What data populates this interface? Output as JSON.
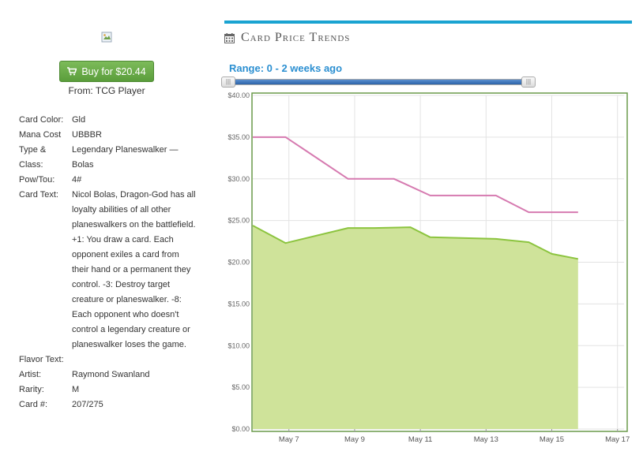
{
  "buy": {
    "label": "Buy for $20.44",
    "source": "From: TCG Player",
    "icon": "shopping-cart-icon"
  },
  "details": [
    {
      "k": "Card Color:",
      "v": "Gld"
    },
    {
      "k": "Mana Cost",
      "v": "UBBBR"
    },
    {
      "k": "Type & Class:",
      "v": "Legendary Planeswalker — Bolas"
    },
    {
      "k": "Pow/Tou:",
      "v": "4#"
    },
    {
      "k": "Card Text:",
      "v": "Nicol Bolas, Dragon-God has all loyalty abilities of all other planeswalkers on the battlefield. +1: You draw a card. Each opponent exiles a card from their hand or a permanent they control. -3: Destroy target creature or planeswalker. -8: Each opponent who doesn't control a legendary creature or planeswalker loses the game."
    },
    {
      "k": "Flavor Text:",
      "v": ""
    },
    {
      "k": "Artist:",
      "v": "Raymond Swanland"
    },
    {
      "k": "Rarity:",
      "v": "M"
    },
    {
      "k": "Card #:",
      "v": "207/275"
    }
  ],
  "trends": {
    "title": "Card Price Trends",
    "icon": "calendar-icon",
    "range_label": "Range: 0 - 2 weeks ago"
  },
  "chart_data": {
    "type": "area",
    "x_ticks": [
      "May 7",
      "May 9",
      "May 11",
      "May 13",
      "May 15",
      "May 17"
    ],
    "y_ticks": [
      "$0.00",
      "$5.00",
      "$10.00",
      "$15.00",
      "$20.00",
      "$25.00",
      "$30.00",
      "$35.00",
      "$40.00"
    ],
    "ylim": [
      0,
      40
    ],
    "xlim": [
      5.9,
      17.2
    ],
    "grid": true,
    "series": [
      {
        "color": "#d67ab0",
        "fill": false,
        "x": [
          5.9,
          6.9,
          8.8,
          10.2,
          11.3,
          13.3,
          14.3,
          15.8
        ],
        "y": [
          35,
          35,
          30,
          30,
          28,
          28,
          26,
          26
        ]
      },
      {
        "color": "#8cc43f",
        "fill": true,
        "x": [
          5.9,
          6.9,
          8.8,
          9.6,
          10.7,
          11.3,
          13.3,
          14.3,
          15.0,
          15.8
        ],
        "y": [
          24.4,
          22.3,
          24.1,
          24.1,
          24.2,
          23.0,
          22.8,
          22.4,
          21.0,
          20.4
        ]
      }
    ]
  }
}
